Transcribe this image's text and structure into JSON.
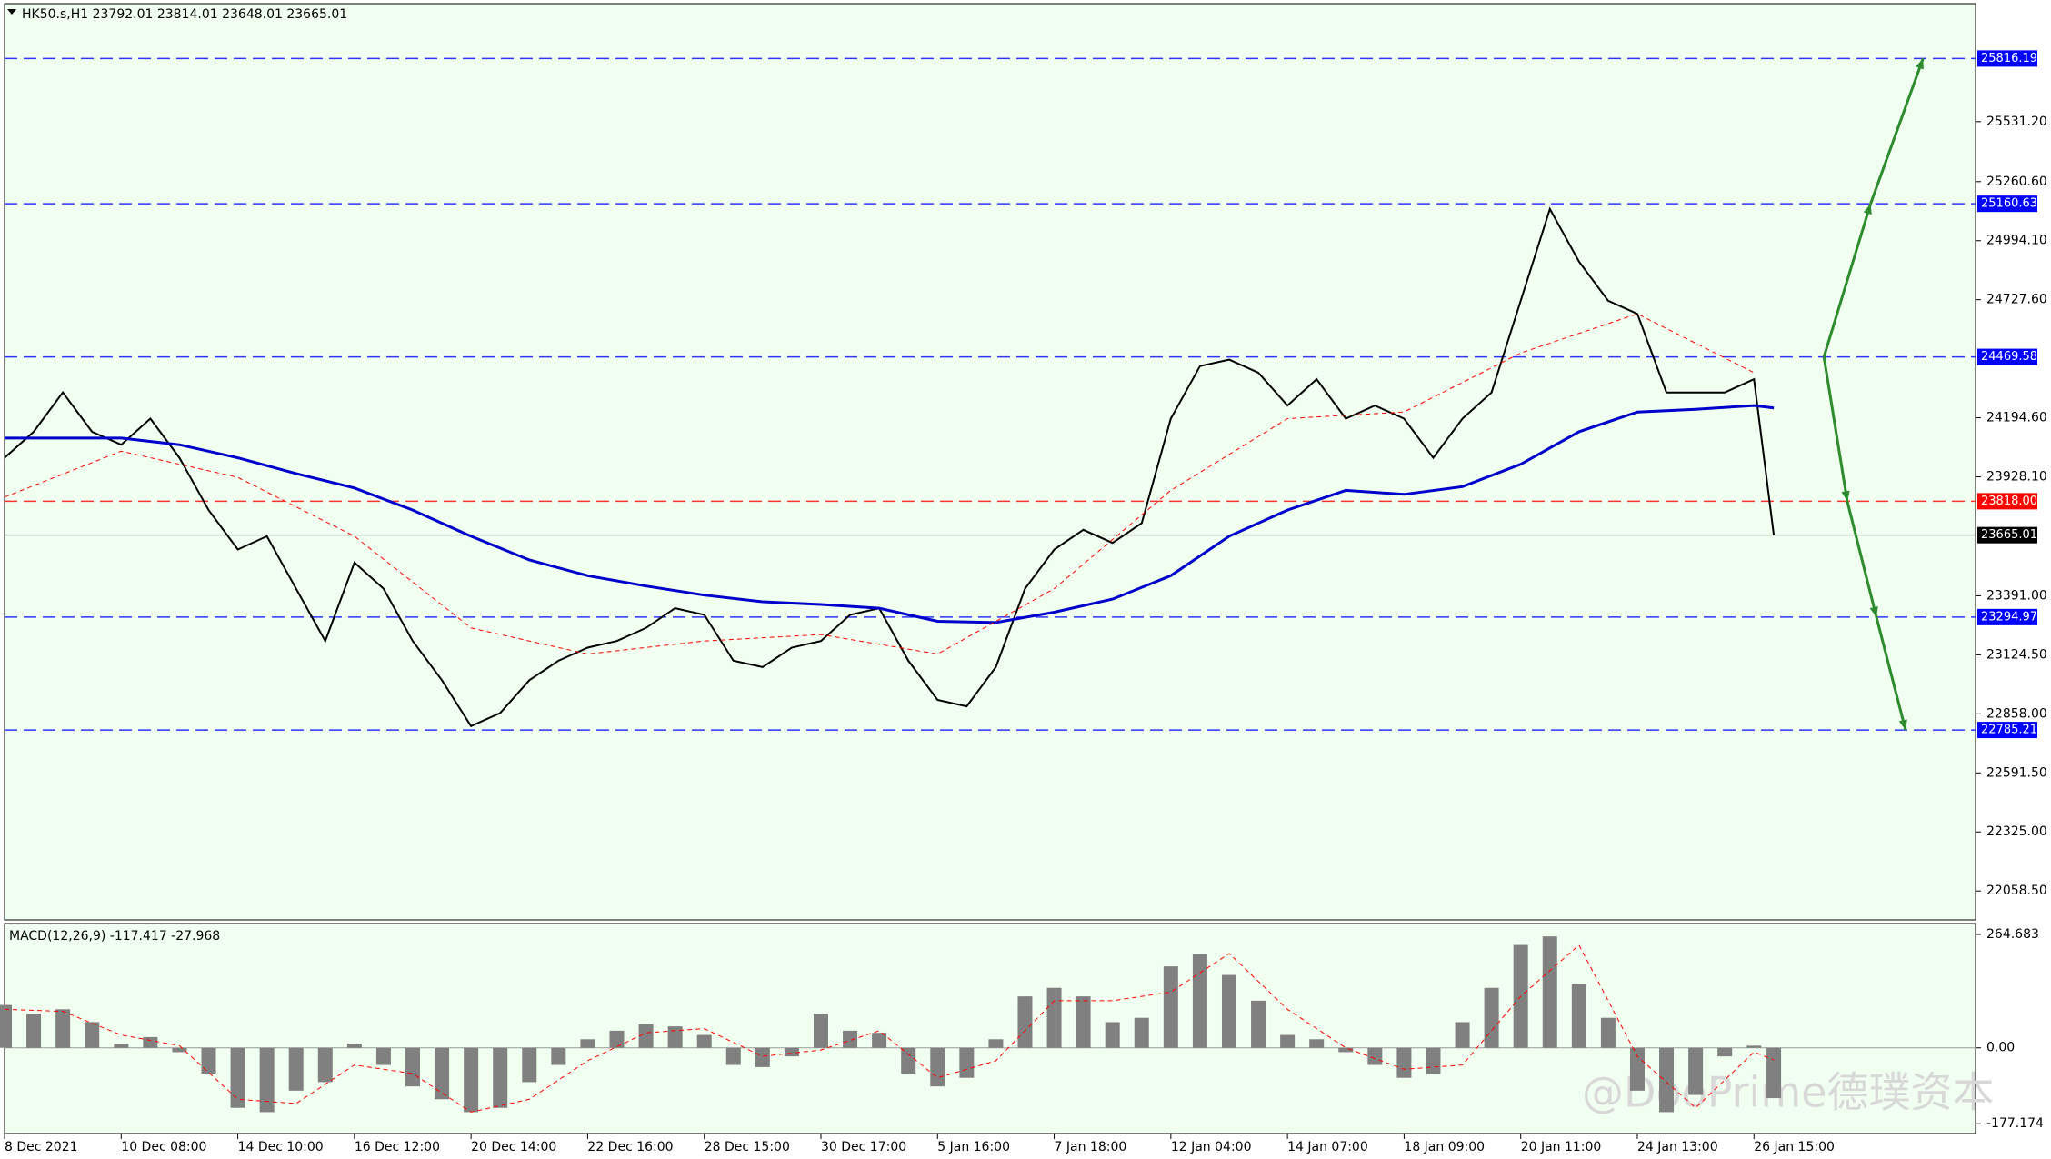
{
  "chart_data": [
    {
      "type": "line",
      "title": "HK50.s,H1  23792.01 23814.01 23648.01 23665.01",
      "xlim": [
        0,
        16.9
      ],
      "ylim": [
        21928,
        26064
      ],
      "xticks": [
        {
          "value": 0,
          "label": "8 Dec 2021"
        },
        {
          "value": 1,
          "label": "10 Dec 08:00"
        },
        {
          "value": 2,
          "label": "14 Dec 10:00"
        },
        {
          "value": 3,
          "label": "16 Dec 12:00"
        },
        {
          "value": 4,
          "label": "20 Dec 14:00"
        },
        {
          "value": 5,
          "label": "22 Dec 16:00"
        },
        {
          "value": 6,
          "label": "28 Dec 15:00"
        },
        {
          "value": 7,
          "label": "30 Dec 17:00"
        },
        {
          "value": 8,
          "label": "5 Jan 16:00"
        },
        {
          "value": 9,
          "label": "7 Jan 18:00"
        },
        {
          "value": 10,
          "label": "12 Jan 04:00"
        },
        {
          "value": 11,
          "label": "14 Jan 07:00"
        },
        {
          "value": 12,
          "label": "18 Jan 09:00"
        },
        {
          "value": 13,
          "label": "20 Jan 11:00"
        },
        {
          "value": 14,
          "label": "24 Jan 13:00"
        },
        {
          "value": 15,
          "label": "26 Jan 15:00"
        }
      ],
      "yticks": [
        {
          "value": 25531.2,
          "label": "25531.20"
        },
        {
          "value": 25260.6,
          "label": "25260.60"
        },
        {
          "value": 24994.1,
          "label": "24994.10"
        },
        {
          "value": 24727.6,
          "label": "24727.60"
        },
        {
          "value": 24194.6,
          "label": "24194.60"
        },
        {
          "value": 23928.1,
          "label": "23928.10"
        },
        {
          "value": 23391,
          "label": "23391.00"
        },
        {
          "value": 23124.5,
          "label": "23124.50"
        },
        {
          "value": 22858,
          "label": "22858.00"
        },
        {
          "value": 22591.5,
          "label": "22591.50"
        },
        {
          "value": 22325,
          "label": "22325.00"
        },
        {
          "value": 22058.5,
          "label": "22058.50"
        }
      ],
      "levels": [
        {
          "value": 25816.19,
          "label": "25816.19",
          "color": "#0000ff",
          "style": "dashed"
        },
        {
          "value": 25160.63,
          "label": "25160.63",
          "color": "#0000ff",
          "style": "dashed"
        },
        {
          "value": 24469.58,
          "label": "24469.58",
          "color": "#0000ff",
          "style": "dashed"
        },
        {
          "value": 23818,
          "label": "23818.00",
          "color": "#ff0000",
          "style": "dashed"
        },
        {
          "value": 23665.01,
          "label": "23665.01",
          "color": "#000000",
          "style": "solid"
        },
        {
          "value": 23294.97,
          "label": "23294.97",
          "color": "#0000ff",
          "style": "dashed"
        },
        {
          "value": 22785.21,
          "label": "22785.21",
          "color": "#0000ff",
          "style": "dashed"
        }
      ],
      "series": [
        {
          "type": "line",
          "color": "#000000",
          "width": 2,
          "x": [
            0,
            0.25,
            0.5,
            0.75,
            1,
            1.25,
            1.5,
            1.75,
            2,
            2.25,
            2.5,
            2.75,
            3,
            3.25,
            3.5,
            3.75,
            4,
            4.25,
            4.5,
            4.75,
            5,
            5.25,
            5.5,
            5.75,
            6,
            6.25,
            6.5,
            6.75,
            7,
            7.25,
            7.5,
            7.75,
            8,
            8.25,
            8.5,
            8.75,
            9,
            9.25,
            9.5,
            9.75,
            10,
            10.25,
            10.5,
            10.75,
            11,
            11.25,
            11.5,
            11.75,
            12,
            12.25,
            12.5,
            12.75,
            13,
            13.25,
            13.5,
            13.75,
            14,
            14.25,
            14.5,
            14.75,
            15,
            15.17
          ],
          "values": [
            24014,
            24132,
            24309,
            24132,
            24073,
            24191,
            24014,
            23778,
            23600,
            23660,
            23423,
            23187,
            23541,
            23423,
            23187,
            23010,
            22803,
            22862,
            23010,
            23098,
            23157,
            23187,
            23246,
            23335,
            23305,
            23098,
            23069,
            23157,
            23187,
            23305,
            23335,
            23098,
            22921,
            22892,
            23069,
            23423,
            23600,
            23689,
            23630,
            23719,
            24191,
            24428,
            24457,
            24398,
            24250,
            24369,
            24191,
            24250,
            24191,
            24014,
            24191,
            24309,
            24723,
            25137,
            24900,
            24723,
            24664,
            24309,
            24309,
            24309,
            24369,
            23665.01
          ]
        },
        {
          "type": "line",
          "color": "#0000cc",
          "width": 3,
          "x": [
            0,
            0.5,
            1,
            1.5,
            2,
            2.5,
            3,
            3.5,
            4,
            4.5,
            5,
            5.5,
            6,
            6.5,
            7,
            7.5,
            8,
            8.5,
            9,
            9.5,
            10,
            10.5,
            11,
            11.5,
            12,
            12.5,
            13,
            13.5,
            14,
            14.5,
            15,
            15.17
          ],
          "values": [
            24103,
            24103,
            24103,
            24073,
            24014,
            23943,
            23878,
            23778,
            23660,
            23553,
            23482,
            23435,
            23394,
            23364,
            23352,
            23335,
            23276,
            23270,
            23317,
            23376,
            23482,
            23660,
            23778,
            23867,
            23849,
            23884,
            23985,
            24132,
            24221,
            24233,
            24250,
            24239
          ]
        },
        {
          "type": "line",
          "color": "#ff0000",
          "width": 1,
          "dash": true,
          "x": [
            0,
            1,
            2,
            3,
            4,
            5,
            6,
            7,
            8,
            9,
            10,
            11,
            12,
            13,
            14,
            15
          ],
          "values": [
            23837,
            24044,
            23926,
            23660,
            23246,
            23128,
            23187,
            23216,
            23128,
            23423,
            23867,
            24191,
            24221,
            24487,
            24664,
            24398
          ]
        }
      ]
    },
    {
      "type": "bar",
      "title": "MACD(12,26,9) -117.417 -27.968",
      "xlim": [
        0,
        16.9
      ],
      "ylim": [
        -200,
        290
      ],
      "yticks": [
        264.683,
        {
          "value": 0,
          "label": "0.00"
        },
        -177.174
      ],
      "series": [
        {
          "type": "bar",
          "color": "#808080",
          "x": [
            0,
            0.25,
            0.5,
            0.75,
            1,
            1.25,
            1.5,
            1.75,
            2,
            2.25,
            2.5,
            2.75,
            3,
            3.25,
            3.5,
            3.75,
            4,
            4.25,
            4.5,
            4.75,
            5,
            5.25,
            5.5,
            5.75,
            6,
            6.25,
            6.5,
            6.75,
            7,
            7.25,
            7.5,
            7.75,
            8,
            8.25,
            8.5,
            8.75,
            9,
            9.25,
            9.5,
            9.75,
            10,
            10.25,
            10.5,
            10.75,
            11,
            11.25,
            11.5,
            11.75,
            12,
            12.25,
            12.5,
            12.75,
            13,
            13.25,
            13.5,
            13.75,
            14,
            14.25,
            14.5,
            14.75,
            15,
            15.17
          ],
          "values": [
            100,
            80,
            90,
            60,
            10,
            25,
            -10,
            -60,
            -140,
            -150,
            -100,
            -80,
            10,
            -40,
            -90,
            -120,
            -150,
            -140,
            -80,
            -40,
            20,
            40,
            55,
            50,
            30,
            -40,
            -45,
            -20,
            80,
            40,
            35,
            -60,
            -90,
            -70,
            20,
            120,
            140,
            120,
            60,
            70,
            190,
            220,
            170,
            110,
            30,
            20,
            -10,
            -40,
            -70,
            -60,
            60,
            140,
            240,
            260,
            150,
            70,
            -100,
            -150,
            -110,
            -20,
            5,
            -117.417
          ]
        },
        {
          "type": "line",
          "color": "#ff0000",
          "width": 1,
          "dash": true,
          "x": [
            0,
            0.5,
            1,
            1.5,
            2,
            2.5,
            3,
            3.5,
            4,
            4.5,
            5,
            5.5,
            6,
            6.5,
            7,
            7.5,
            8,
            8.5,
            9,
            9.5,
            10,
            10.5,
            11,
            11.5,
            12,
            12.5,
            13,
            13.5,
            14,
            14.5,
            15,
            15.17
          ],
          "values": [
            90,
            85,
            30,
            5,
            -120,
            -130,
            -40,
            -60,
            -150,
            -120,
            -30,
            35,
            45,
            -20,
            -5,
            40,
            -70,
            -30,
            110,
            110,
            130,
            220,
            90,
            0,
            -50,
            -40,
            120,
            240,
            -20,
            -140,
            -10,
            -27.968
          ]
        }
      ]
    }
  ],
  "watermark": "@DooPrime德璞资本"
}
